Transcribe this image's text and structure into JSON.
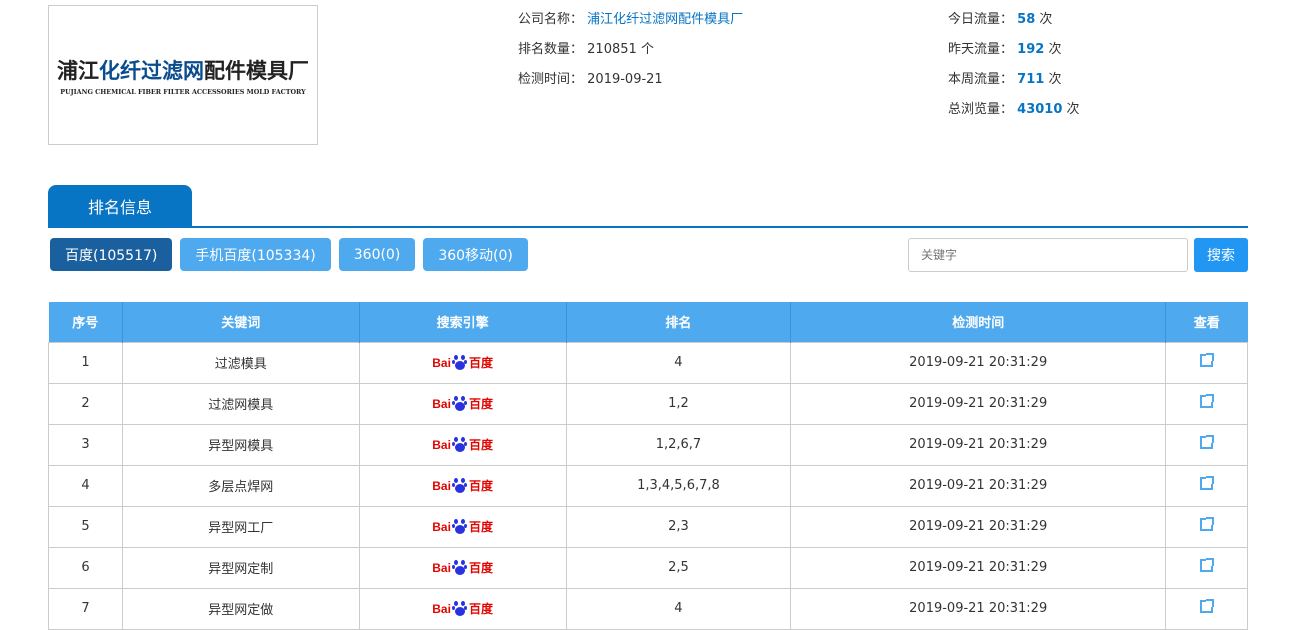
{
  "logo": {
    "cn_black_1": "浦江",
    "cn_blue": "化纤过滤网",
    "cn_black_2": "配件模具厂",
    "en": "PUJIANG CHEMICAL FIBER FILTER ACCESSORIES MOLD FACTORY"
  },
  "company": {
    "name_label": "公司名称：",
    "name": "浦江化纤过滤网配件模具厂",
    "rank_label": "排名数量：",
    "rank_count": "210851",
    "rank_unit": "个",
    "check_label": "检测时间：",
    "check_date": "2019-09-21"
  },
  "traffic": {
    "unit": "次",
    "items": [
      {
        "label": "今日流量：",
        "value": "58"
      },
      {
        "label": "昨天流量：",
        "value": "192"
      },
      {
        "label": "本周流量：",
        "value": "711"
      },
      {
        "label": "总浏览量：",
        "value": "43010"
      }
    ]
  },
  "tab": "排名信息",
  "engines": [
    "百度(105517)",
    "手机百度(105334)",
    "360(0)",
    "360移动(0)"
  ],
  "search": {
    "placeholder": "关键字",
    "button": "搜索"
  },
  "table": {
    "headers": [
      "序号",
      "关键词",
      "搜索引擎",
      "排名",
      "检测时间",
      "查看"
    ],
    "engine_logo": {
      "text_a": "Bai",
      "text_b": "百度",
      "color": "#e10602",
      "paw_color": "#2932e1"
    },
    "rows": [
      {
        "no": "1",
        "keyword": "过滤模具",
        "rank": "4",
        "time": "2019-09-21 20:31:29"
      },
      {
        "no": "2",
        "keyword": "过滤网模具",
        "rank": "1,2",
        "time": "2019-09-21 20:31:29"
      },
      {
        "no": "3",
        "keyword": "异型网模具",
        "rank": "1,2,6,7",
        "time": "2019-09-21 20:31:29"
      },
      {
        "no": "4",
        "keyword": "多层点焊网",
        "rank": "1,3,4,5,6,7,8",
        "time": "2019-09-21 20:31:29"
      },
      {
        "no": "5",
        "keyword": "异型网工厂",
        "rank": "2,3",
        "time": "2019-09-21 20:31:29"
      },
      {
        "no": "6",
        "keyword": "异型网定制",
        "rank": "2,5",
        "time": "2019-09-21 20:31:29"
      },
      {
        "no": "7",
        "keyword": "异型网定做",
        "rank": "4",
        "time": "2019-09-21 20:31:29"
      }
    ]
  }
}
